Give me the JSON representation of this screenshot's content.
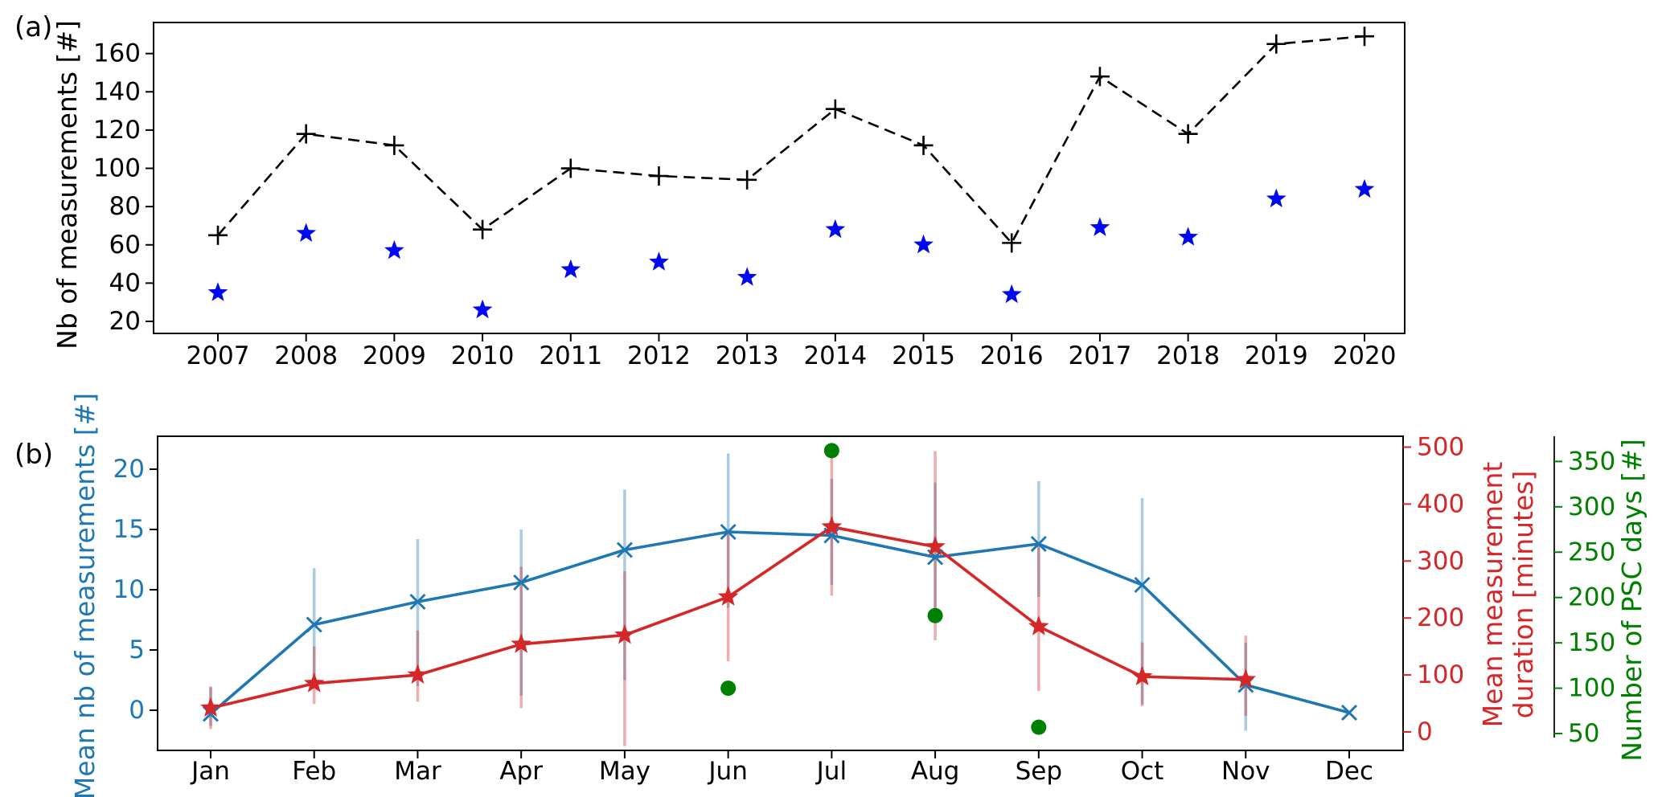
{
  "figure": {
    "panel_a_label": "(a)",
    "panel_b_label": "(b)"
  },
  "colors": {
    "black": "#000000",
    "star_blue": "#0008f0",
    "line_blue": "#1f77b4",
    "line_red": "#d62728",
    "green": "#008000",
    "err_blue": "rgba(31,119,180,0.38)",
    "err_red": "rgba(214,39,40,0.38)"
  },
  "chart_data": [
    {
      "id": "a",
      "type": "line",
      "ylabel": "Nb of measurements [#]",
      "x_ticks": [
        "2007",
        "2008",
        "2009",
        "2010",
        "2011",
        "2012",
        "2013",
        "2014",
        "2015",
        "2016",
        "2017",
        "2018",
        "2019",
        "2020"
      ],
      "y_ticks": [
        20,
        40,
        60,
        80,
        100,
        120,
        140,
        160
      ],
      "ylim": [
        14,
        176
      ],
      "grid": false,
      "series": [
        {
          "name": "nb-measurements-total",
          "marker": "plus",
          "line": "dashed",
          "color_key": "black",
          "values": [
            65,
            118,
            112,
            68,
            100,
            96,
            94,
            131,
            112,
            61,
            148,
            118,
            165,
            169
          ]
        },
        {
          "name": "nb-measurements-subset",
          "marker": "star",
          "line": "none",
          "color_key": "star_blue",
          "values": [
            35,
            66,
            57,
            26,
            47,
            51,
            43,
            68,
            60,
            34,
            69,
            64,
            84,
            89
          ]
        }
      ]
    },
    {
      "id": "b",
      "type": "line-multi-axis",
      "x_ticks": [
        "Jan",
        "Feb",
        "Mar",
        "Apr",
        "May",
        "Jun",
        "Jul",
        "Aug",
        "Sep",
        "Oct",
        "Nov",
        "Dec"
      ],
      "left_axis": {
        "label": "Mean nb of measurements [#]",
        "ticks": [
          0,
          5,
          10,
          15,
          20
        ],
        "color_key": "line_blue"
      },
      "right_axis_1": {
        "label_line1": "Mean measurement",
        "label_line2": "duration [minutes]",
        "label": "Mean measurement duration [minutes]",
        "ticks": [
          0,
          100,
          200,
          300,
          400,
          500
        ],
        "color_key": "line_red"
      },
      "right_axis_2": {
        "label": "Number of PSC days [#]",
        "ticks": [
          50,
          100,
          150,
          200,
          250,
          300,
          350
        ],
        "color_key": "green"
      },
      "series": [
        {
          "name": "mean-nb-measurements",
          "axis": "left",
          "marker": "x",
          "line": "solid",
          "color_key": "line_blue",
          "values": [
            -0.3,
            7.1,
            9.0,
            10.6,
            13.3,
            14.8,
            14.5,
            12.7,
            13.8,
            10.4,
            2.1,
            -0.2
          ],
          "err_low": [
            -1.3,
            2.9,
            2.0,
            1.2,
            2.5,
            8.5,
            10.4,
            8.5,
            9.4,
            0.5,
            -1.7,
            null
          ],
          "err_high": [
            1.9,
            11.8,
            14.2,
            15.0,
            18.3,
            21.3,
            19.2,
            18.9,
            19.0,
            17.6,
            5.6,
            null
          ]
        },
        {
          "name": "mean-measurement-duration",
          "axis": "right1",
          "marker": "star",
          "line": "solid",
          "color_key": "line_red",
          "values": [
            42,
            85,
            100,
            154,
            170,
            237,
            360,
            325,
            185,
            97,
            92,
            null
          ],
          "err_low": [
            5,
            49,
            53,
            42,
            -25,
            124,
            239,
            161,
            72,
            45,
            28,
            null
          ],
          "err_high": [
            80,
            150,
            178,
            290,
            282,
            350,
            499,
            493,
            333,
            157,
            169,
            null
          ]
        },
        {
          "name": "psc-days",
          "axis": "right2",
          "marker": "dot",
          "line": "none",
          "color_key": "green",
          "values": [
            null,
            null,
            null,
            null,
            null,
            100,
            362,
            180,
            57,
            null,
            null,
            null
          ]
        }
      ]
    }
  ]
}
